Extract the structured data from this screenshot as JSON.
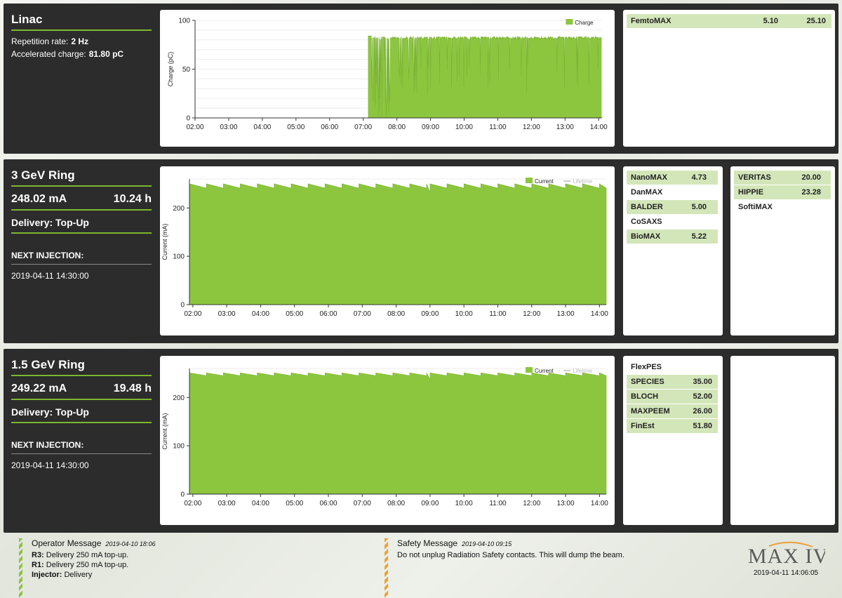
{
  "linac": {
    "title": "Linac",
    "rep_label": "Repetition rate:",
    "rep_value": "2 Hz",
    "charge_label": "Accelerated charge:",
    "charge_value": "81.80 pC",
    "beamlines": [
      {
        "name": "FemtoMAX",
        "value": "5.10",
        "value2": "25.10",
        "active": true
      }
    ]
  },
  "r3": {
    "title": "3 GeV Ring",
    "current": "248.02 mA",
    "lifetime": "10.24 h",
    "delivery": "Delivery: Top-Up",
    "next_label": "NEXT INJECTION:",
    "next_time": "2019-04-11 14:30:00",
    "beamlines_col1": [
      {
        "name": "NanoMAX",
        "value": "4.73",
        "active": true
      },
      {
        "name": "DanMAX",
        "value": "",
        "active": false
      },
      {
        "name": "BALDER",
        "value": "5.00",
        "active": true
      },
      {
        "name": "CoSAXS",
        "value": "",
        "active": false
      },
      {
        "name": "BioMAX",
        "value": "5.22",
        "active": true
      }
    ],
    "beamlines_col2": [
      {
        "name": "VERITAS",
        "value": "20.00",
        "active": true
      },
      {
        "name": "HIPPIE",
        "value": "23.28",
        "active": true
      },
      {
        "name": "SoftiMAX",
        "value": "",
        "active": false
      }
    ]
  },
  "r1": {
    "title": "1.5 GeV Ring",
    "current": "249.22 mA",
    "lifetime": "19.48 h",
    "delivery": "Delivery: Top-Up",
    "next_label": "NEXT INJECTION:",
    "next_time": "2019-04-11 14:30:00",
    "beamlines_col1": [
      {
        "name": "FlexPES",
        "value": "",
        "active": false
      },
      {
        "name": "SPECIES",
        "value": "35.00",
        "active": true
      },
      {
        "name": "BLOCH",
        "value": "52.00",
        "active": true
      },
      {
        "name": "MAXPEEM",
        "value": "26.00",
        "active": true
      },
      {
        "name": "FinEst",
        "value": "51.80",
        "active": true
      }
    ]
  },
  "footer": {
    "operator_title": "Operator Message",
    "operator_date": "2019-04-10 18:06",
    "operator_lines": [
      {
        "label": "R3:",
        "text": "Delivery 250 mA top-up."
      },
      {
        "label": "R1:",
        "text": "Delivery 250 mA top-up."
      },
      {
        "label": "Injector:",
        "text": "Delivery"
      }
    ],
    "safety_title": "Safety Message",
    "safety_date": "2019-04-10 09:15",
    "safety_text": "Do not unplug Radiation Safety contacts. This will dump the beam.",
    "logo_text": "MAX IV",
    "clock": "2019-04-11 14:06:05"
  },
  "colors": {
    "accent": "#7cb82f",
    "fill": "#8cc63f",
    "panel": "#2c2c2c"
  },
  "chart_data": [
    {
      "type": "area",
      "ylabel": "Charge (pC)",
      "ylim": [
        0,
        100
      ],
      "yticks": [
        0,
        50,
        100
      ],
      "xticks": [
        "02:00",
        "03:00",
        "04:00",
        "05:00",
        "06:00",
        "07:00",
        "08:00",
        "09:00",
        "10:00",
        "11:00",
        "12:00",
        "13:00",
        "14:00"
      ],
      "x_range_hours": [
        2.0,
        14.1
      ],
      "legend": [
        "Charge"
      ],
      "legend_position": "top-right",
      "series": [
        {
          "name": "Charge",
          "start_hour": 7.15,
          "level": 82,
          "peak": 84
        }
      ]
    },
    {
      "type": "area",
      "ylabel": "Current (mA)",
      "ylim": [
        0,
        260
      ],
      "yticks": [
        0,
        100,
        200
      ],
      "xticks": [
        "02:00",
        "03:00",
        "04:00",
        "05:00",
        "06:00",
        "07:00",
        "08:00",
        "09:00",
        "10:00",
        "11:00",
        "12:00",
        "13:00",
        "14:00"
      ],
      "x_range_hours": [
        1.9,
        14.2
      ],
      "legend": [
        "Current",
        "Lifetime"
      ],
      "legend_position": "top-right",
      "series": [
        {
          "name": "Current",
          "top": 250,
          "bottom": 241,
          "period_min": 30,
          "dip_hour": 9.0,
          "dip_value": 232
        }
      ]
    },
    {
      "type": "area",
      "ylabel": "Current (mA)",
      "ylim": [
        0,
        260
      ],
      "yticks": [
        0,
        100,
        200
      ],
      "xticks": [
        "02:00",
        "03:00",
        "04:00",
        "05:00",
        "06:00",
        "07:00",
        "08:00",
        "09:00",
        "10:00",
        "11:00",
        "12:00",
        "13:00",
        "14:00"
      ],
      "x_range_hours": [
        1.9,
        14.2
      ],
      "legend": [
        "Current",
        "Lifetime"
      ],
      "legend_position": "top-right",
      "series": [
        {
          "name": "Current",
          "top": 251,
          "bottom": 245,
          "period_min": 30,
          "dip_hour": 9.0,
          "dip_value": 237
        }
      ]
    }
  ]
}
